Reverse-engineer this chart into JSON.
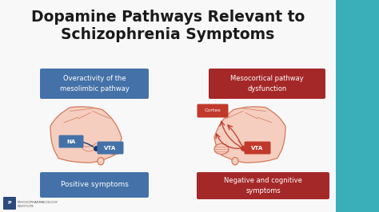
{
  "title_line1": "Dopamine Pathways Relevant to",
  "title_line2": "Schizophrenia Symptoms",
  "title_fontsize": 13.5,
  "bg_color": "#f8f8f8",
  "right_panel_color": "#3aafb9",
  "blue_box_color": "#4472a8",
  "red_box_color": "#a52828",
  "small_red_box_color": "#c0392b",
  "brain_color": "#f5cec0",
  "brain_outline_color": "#d4785a",
  "left_label_top": "Overactivity of the\nmesolimbic pathway",
  "left_label_na": "NA",
  "left_label_vta": "VTA",
  "left_label_bottom": "Positive symptoms",
  "right_label_cortex": "Cortex",
  "right_label_top": "Mesocortical pathway\ndysfunction",
  "right_label_vta": "VTA",
  "right_label_bottom": "Negative and cognitive\nsymptoms",
  "footer_text": "PSYCHOPHARMACOLOGY\nINSTITUTE",
  "white": "#ffffff",
  "dark_text": "#1a1a1a",
  "navy": "#2c4a7c",
  "dot_blue": "#1a3a6a",
  "dot_red": "#c0392b"
}
